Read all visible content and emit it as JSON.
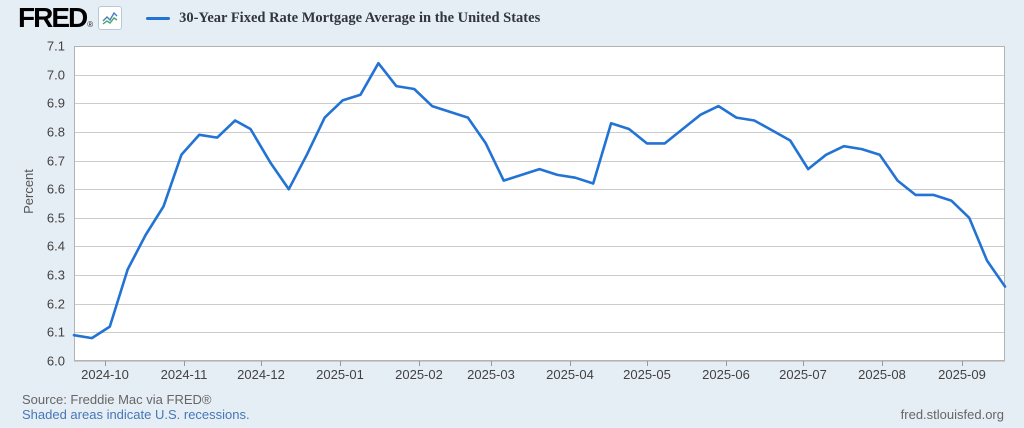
{
  "branding": {
    "logo_text": "FRED",
    "registered_mark": "®"
  },
  "footer": {
    "source": "Source: Freddie Mac via FRED®",
    "recession_note": "Shaded areas indicate U.S. recessions.",
    "site": "fred.stlouisfed.org"
  },
  "colors": {
    "line": "#2273d3",
    "background": "#e5edf5",
    "plot_background": "#ffffff",
    "grid": "#cccccc",
    "plot_border": "#b3b3b3",
    "axis_text": "#424242",
    "link": "#4677b8",
    "source_text": "#666666"
  },
  "chart_data": {
    "type": "line",
    "title": "30-Year Fixed Rate Mortgage Average in the United States",
    "ylabel": "Percent",
    "xlabel": "",
    "units": "percent",
    "frequency": "weekly",
    "grid": true,
    "legend_position": "top",
    "ylim": [
      6.0,
      7.1
    ],
    "y_tick_step": 0.1,
    "y_tick_labels": [
      "6.0",
      "6.1",
      "6.2",
      "6.3",
      "6.4",
      "6.5",
      "6.6",
      "6.7",
      "6.8",
      "6.9",
      "7.0",
      "7.1"
    ],
    "x_tick_labels": [
      "2024-10",
      "2024-11",
      "2024-12",
      "2025-01",
      "2025-02",
      "2025-03",
      "2025-04",
      "2025-05",
      "2025-06",
      "2025-07",
      "2025-08",
      "2025-09"
    ],
    "line_color": "#2273d3",
    "dates": [
      "2024-09-19",
      "2024-09-26",
      "2024-10-03",
      "2024-10-10",
      "2024-10-17",
      "2024-10-24",
      "2024-10-31",
      "2024-11-07",
      "2024-11-14",
      "2024-11-21",
      "2024-11-27",
      "2024-12-05",
      "2024-12-12",
      "2024-12-19",
      "2024-12-26",
      "2025-01-02",
      "2025-01-09",
      "2025-01-16",
      "2025-01-23",
      "2025-01-30",
      "2025-02-06",
      "2025-02-13",
      "2025-02-20",
      "2025-02-27",
      "2025-03-06",
      "2025-03-13",
      "2025-03-20",
      "2025-03-27",
      "2025-04-03",
      "2025-04-10",
      "2025-04-17",
      "2025-04-24",
      "2025-05-01",
      "2025-05-08",
      "2025-05-15",
      "2025-05-22",
      "2025-05-29",
      "2025-06-05",
      "2025-06-12",
      "2025-06-18",
      "2025-06-26",
      "2025-07-03",
      "2025-07-10",
      "2025-07-17",
      "2025-07-24",
      "2025-07-31",
      "2025-08-07",
      "2025-08-14",
      "2025-08-21",
      "2025-08-28",
      "2025-09-04",
      "2025-09-11",
      "2025-09-18"
    ],
    "values": [
      6.09,
      6.08,
      6.12,
      6.32,
      6.44,
      6.54,
      6.72,
      6.79,
      6.78,
      6.84,
      6.81,
      6.69,
      6.6,
      6.72,
      6.85,
      6.91,
      6.93,
      7.04,
      6.96,
      6.95,
      6.89,
      6.87,
      6.85,
      6.76,
      6.63,
      6.65,
      6.67,
      6.65,
      6.64,
      6.62,
      6.83,
      6.81,
      6.76,
      6.76,
      6.81,
      6.86,
      6.89,
      6.85,
      6.84,
      6.81,
      6.77,
      6.67,
      6.72,
      6.75,
      6.74,
      6.72,
      6.63,
      6.58,
      6.58,
      6.56,
      6.5,
      6.35,
      6.26
    ]
  }
}
